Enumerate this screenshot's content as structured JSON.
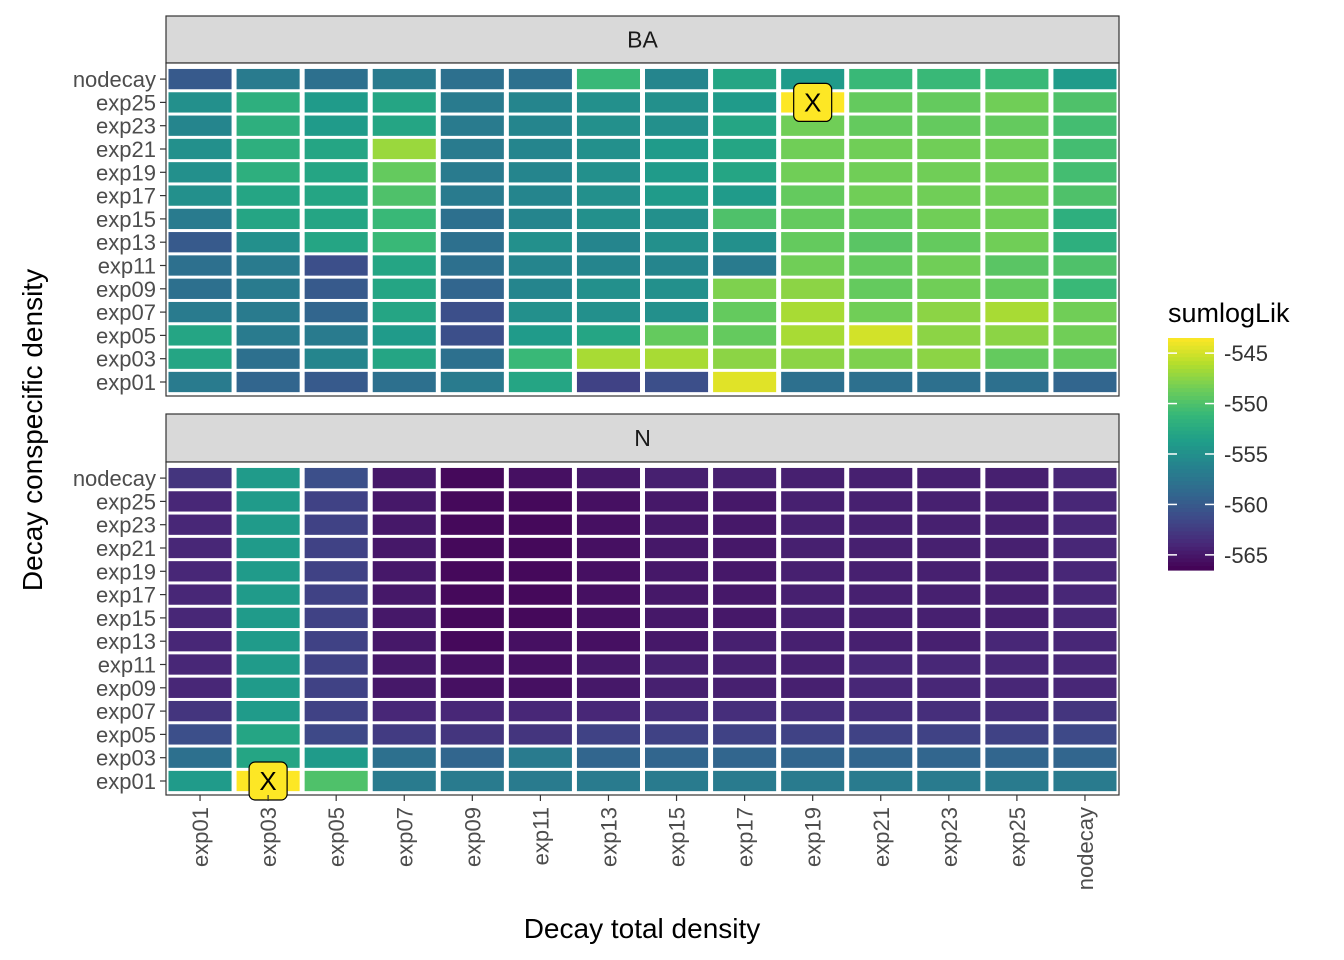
{
  "chart_data": {
    "type": "heatmap",
    "xlabel": "Decay total density",
    "ylabel": "Decay conspecific density",
    "x_categories": [
      "exp01",
      "exp03",
      "exp05",
      "exp07",
      "exp09",
      "exp11",
      "exp13",
      "exp15",
      "exp17",
      "exp19",
      "exp21",
      "exp23",
      "exp25",
      "nodecay"
    ],
    "y_categories": [
      "exp01",
      "exp03",
      "exp05",
      "exp07",
      "exp09",
      "exp11",
      "exp13",
      "exp15",
      "exp17",
      "exp19",
      "exp21",
      "exp23",
      "exp25",
      "nodecay"
    ],
    "legend": {
      "title": "sumlogLik",
      "ticks": [
        -545,
        -550,
        -555,
        -560,
        -565
      ],
      "tick_labels": [
        "-545",
        "-550",
        "-555",
        "-560",
        "-565"
      ],
      "range": [
        -566.5,
        -543.5
      ],
      "position": "right"
    },
    "marker_label": "X",
    "panels": [
      {
        "name": "BA",
        "marker": {
          "x": "exp19",
          "y": "exp25"
        },
        "values": [
          [
            -557,
            -559,
            -560,
            -558,
            -557,
            -553,
            -562,
            -561,
            -544.5,
            -558,
            -558,
            -558,
            -558,
            -559
          ],
          [
            -553,
            -558,
            -556,
            -553,
            -558,
            -551,
            -546.5,
            -546.5,
            -547.5,
            -547.5,
            -548,
            -547.5,
            -549,
            -549
          ],
          [
            -553,
            -557,
            -557,
            -554,
            -561,
            -554,
            -553,
            -549,
            -549,
            -546.5,
            -545,
            -547.5,
            -547.5,
            -548.5
          ],
          [
            -557,
            -557,
            -559,
            -553,
            -561,
            -555,
            -555,
            -555,
            -549,
            -546.5,
            -548.5,
            -547.5,
            -546.5,
            -548.5
          ],
          [
            -558,
            -557,
            -560,
            -553,
            -559,
            -556,
            -555,
            -555,
            -548,
            -547.5,
            -549,
            -548.5,
            -549,
            -551
          ],
          [
            -558,
            -557,
            -561,
            -553,
            -558,
            -556,
            -556,
            -556,
            -557,
            -548.5,
            -549,
            -548.5,
            -549.5,
            -550
          ],
          [
            -560,
            -555,
            -553,
            -551,
            -558,
            -555,
            -556,
            -555,
            -555,
            -549,
            -549.5,
            -549,
            -548.5,
            -552
          ],
          [
            -557,
            -553,
            -553,
            -551,
            -558,
            -556,
            -555,
            -555,
            -550,
            -549,
            -549,
            -548.5,
            -548.5,
            -552
          ],
          [
            -555,
            -553,
            -553,
            -550,
            -557,
            -556,
            -555,
            -554,
            -554,
            -549,
            -548.5,
            -548.5,
            -548.5,
            -550
          ],
          [
            -555,
            -552,
            -553,
            -549,
            -557,
            -556,
            -555,
            -554,
            -553,
            -548.5,
            -548.5,
            -548.5,
            -548.5,
            -550.5
          ],
          [
            -555,
            -552,
            -553,
            -547,
            -557,
            -556,
            -555,
            -554,
            -553,
            -548.5,
            -548.5,
            -548.5,
            -548.5,
            -550.5
          ],
          [
            -556,
            -552,
            -554,
            -553,
            -557,
            -556,
            -555,
            -555,
            -553,
            -548.5,
            -549,
            -549,
            -549,
            -550.5
          ],
          [
            -555,
            -552,
            -554,
            -553,
            -557,
            -556,
            -555,
            -555,
            -554,
            -543.5,
            -549,
            -549,
            -548.5,
            -550
          ],
          [
            -560,
            -557,
            -558,
            -557,
            -558,
            -558,
            -551,
            -556,
            -553,
            -554,
            -551,
            -551,
            -551,
            -554
          ]
        ]
      },
      {
        "name": "N",
        "values": [
          [
            -554,
            -543.5,
            -550,
            -557,
            -557,
            -557,
            -557,
            -557,
            -557,
            -557,
            -557,
            -557,
            -557,
            -557
          ],
          [
            -558,
            -553,
            -554,
            -558,
            -559,
            -557,
            -559,
            -559,
            -559,
            -559,
            -559,
            -559,
            -559,
            -559
          ],
          [
            -561,
            -553,
            -561.5,
            -562.5,
            -563,
            -563,
            -562,
            -562,
            -562,
            -562,
            -562,
            -562,
            -562,
            -561.5
          ],
          [
            -563,
            -554,
            -562,
            -564,
            -564,
            -564,
            -564,
            -563.5,
            -563.5,
            -563.5,
            -563.5,
            -563.5,
            -563.5,
            -563
          ],
          [
            -564,
            -554,
            -562,
            -565,
            -565.5,
            -565.5,
            -565,
            -564.5,
            -564.5,
            -564.5,
            -564,
            -564,
            -564,
            -564
          ],
          [
            -564,
            -554,
            -562,
            -565,
            -565.5,
            -565.5,
            -565,
            -564.5,
            -564.5,
            -564.5,
            -564,
            -564,
            -564,
            -564
          ],
          [
            -564,
            -554,
            -562,
            -565,
            -566,
            -565.5,
            -565.5,
            -565,
            -564.5,
            -564.5,
            -564.5,
            -564.5,
            -564,
            -564
          ],
          [
            -564,
            -554,
            -562,
            -565,
            -566,
            -566,
            -565.5,
            -565,
            -565,
            -564.5,
            -564.5,
            -564.5,
            -564.5,
            -564
          ],
          [
            -564,
            -554,
            -562,
            -565,
            -566,
            -566,
            -565.5,
            -565,
            -565,
            -564.5,
            -564.5,
            -564.5,
            -564.5,
            -564
          ],
          [
            -564,
            -554,
            -562,
            -565,
            -566,
            -566,
            -565.5,
            -565,
            -565,
            -564.5,
            -564.5,
            -564.5,
            -564.5,
            -564
          ],
          [
            -564,
            -554,
            -562,
            -565,
            -566,
            -566,
            -565.5,
            -565,
            -565,
            -564.5,
            -564.5,
            -564.5,
            -564.5,
            -564
          ],
          [
            -564,
            -554,
            -562,
            -565,
            -566,
            -566,
            -565.5,
            -565,
            -565,
            -564.5,
            -564.5,
            -564.5,
            -564.5,
            -564
          ],
          [
            -564,
            -554,
            -562,
            -565,
            -566,
            -566,
            -565.5,
            -565,
            -565,
            -564.5,
            -564.5,
            -564.5,
            -564.5,
            -564
          ],
          [
            -563,
            -554,
            -561,
            -565,
            -566,
            -565.5,
            -565,
            -564.5,
            -564.5,
            -564.5,
            -564.5,
            -564.5,
            -564.5,
            -564
          ]
        ],
        "marker": {
          "x": "exp03",
          "y": "exp01"
        }
      }
    ]
  }
}
